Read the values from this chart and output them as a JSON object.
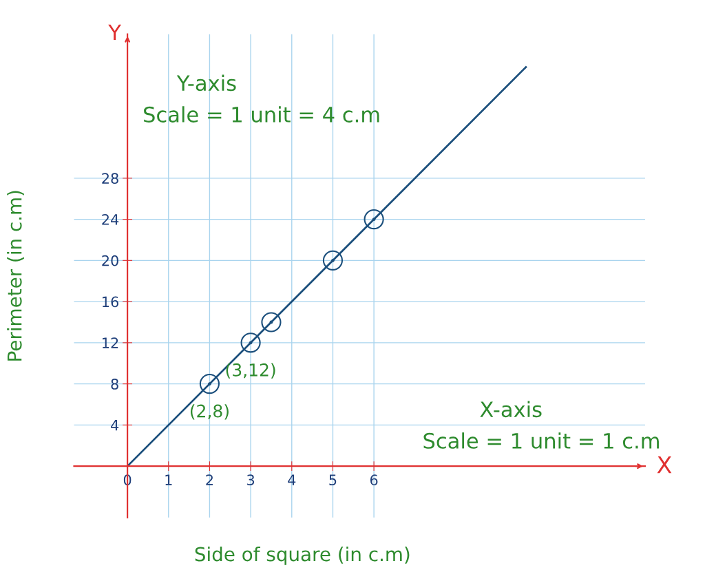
{
  "chart_data": {
    "type": "scatter",
    "xlabel": "Side of square (in c.m)",
    "ylabel": "Perimeter (in c.m)",
    "series": [
      {
        "type": "line",
        "color": "#1b4f7c",
        "x": [
          0,
          9.7
        ],
        "values": [
          0,
          38.8
        ],
        "marker": "none"
      },
      {
        "color": "#1b4f7c",
        "x": [
          2,
          3,
          3.5,
          5,
          6
        ],
        "values": [
          8,
          12,
          14,
          20,
          24
        ],
        "marker": "circle"
      }
    ],
    "xlim": [
      -1.3,
      12.6
    ],
    "ylim": [
      -5,
      42
    ],
    "xticks": [
      0,
      1,
      2,
      3,
      4,
      5,
      6
    ],
    "yticks": [
      4,
      8,
      12,
      16,
      20,
      24,
      28
    ],
    "grid": true,
    "annotations": [
      {
        "text": "(2,8)",
        "x": 2,
        "y": 8
      },
      {
        "text": "(3,12)",
        "x": 3,
        "y": 12
      },
      "Y-axis",
      "Scale = 1 unit = 4 c.m",
      "X-axis",
      "Scale = 1 unit = 1 c.m",
      "Y",
      "X"
    ]
  }
}
